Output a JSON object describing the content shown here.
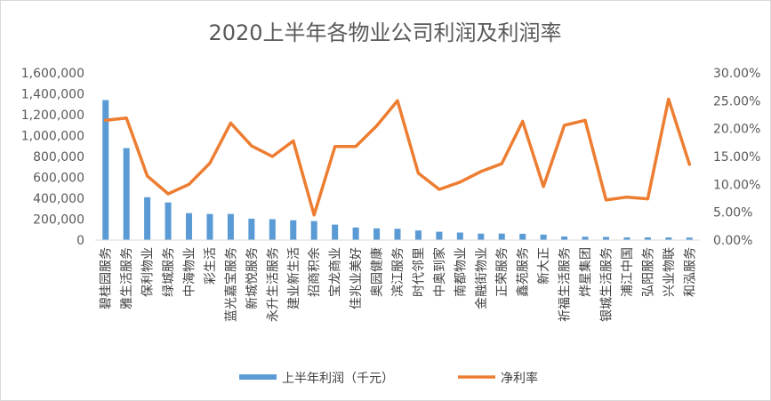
{
  "chart_data": {
    "type": "bar+line",
    "title": "2020上半年各物业公司利润及利润率",
    "categories": [
      "碧桂园服务",
      "雅生活服务",
      "保利物业",
      "绿城服务",
      "中海物业",
      "彩生活",
      "蓝光嘉宝服务",
      "新城悦服务",
      "永升生活服务",
      "建业新生活",
      "招商积余",
      "宝龙商业",
      "佳兆业美好",
      "奥园健康",
      "滨江服务",
      "时代邻里",
      "中奥到家",
      "南都物业",
      "金融街物业",
      "正荣服务",
      "鑫苑服务",
      "新大正",
      "祈福生活服务",
      "烨星集团",
      "银城生活服务",
      "浦江中国",
      "弘阳服务",
      "兴业物联",
      "和泓服务"
    ],
    "series": [
      {
        "name": "上半年利润（千元）",
        "type": "bar",
        "axis": "left",
        "color": "#5b9bd5",
        "values": [
          1340000,
          880000,
          410000,
          360000,
          258000,
          250000,
          250000,
          205000,
          200000,
          190000,
          182000,
          148000,
          120000,
          112000,
          108000,
          92000,
          80000,
          72000,
          62000,
          62000,
          60000,
          52000,
          34000,
          32000,
          30000,
          26000,
          26000,
          25000,
          24000
        ]
      },
      {
        "name": "净利率",
        "type": "line",
        "axis": "right",
        "color": "#ed7d31",
        "unit": "%",
        "values": [
          21.5,
          21.9,
          11.5,
          8.3,
          10.0,
          13.8,
          21.0,
          16.9,
          15.0,
          17.8,
          4.5,
          16.8,
          16.8,
          20.5,
          25.0,
          12.0,
          9.1,
          10.4,
          12.3,
          13.7,
          21.3,
          9.6,
          20.6,
          21.5,
          7.2,
          7.7,
          7.4,
          25.3,
          13.6
        ]
      }
    ],
    "y_left": {
      "min": 0,
      "max": 1600000,
      "step": 200000,
      "tick_labels": [
        "0",
        "200,000",
        "400,000",
        "600,000",
        "800,000",
        "1,000,000",
        "1,200,000",
        "1,400,000",
        "1,600,000"
      ]
    },
    "y_right": {
      "min": 0,
      "max": 30,
      "step": 5,
      "tick_labels": [
        "0.00%",
        "5.00%",
        "10.00%",
        "15.00%",
        "20.00%",
        "25.00%",
        "30.00%"
      ]
    },
    "grid": false,
    "legend": {
      "position": "bottom",
      "entries": [
        "上半年利润（千元）",
        "净利率"
      ]
    }
  }
}
